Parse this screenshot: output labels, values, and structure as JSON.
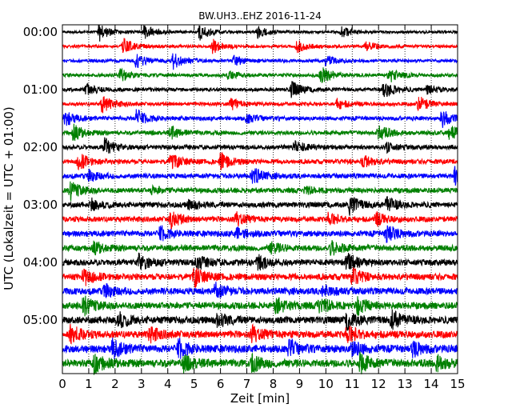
{
  "chart_data": {
    "type": "line",
    "title": "BW.UH3..EHZ 2016-11-24",
    "xlabel": "Zeit  [min]",
    "ylabel": "UTC (Lokalzeit = UTC + 01:00)",
    "xlim": [
      0,
      15
    ],
    "x_ticks": [
      "0",
      "1",
      "2",
      "3",
      "4",
      "5",
      "6",
      "7",
      "8",
      "9",
      "10",
      "11",
      "12",
      "13",
      "14",
      "15"
    ],
    "y_ticks": [
      "00:00",
      "01:00",
      "02:00",
      "03:00",
      "04:00",
      "05:00"
    ],
    "grid": "vertical dotted",
    "trace_colors": [
      "#000000",
      "#ff0000",
      "#0000ff",
      "#008000"
    ],
    "traces_per_hour": 4,
    "minutes_per_trace": 15,
    "traces": [
      {
        "start": "00:00",
        "color": "#000000",
        "events": [
          [
            1.4,
            1.0
          ],
          [
            3.1,
            0.8
          ],
          [
            5.2,
            0.9
          ],
          [
            7.4,
            0.7
          ],
          [
            10.6,
            0.6
          ]
        ]
      },
      {
        "start": "00:15",
        "color": "#ff0000",
        "events": [
          [
            2.3,
            1.0
          ],
          [
            5.7,
            0.8
          ],
          [
            8.9,
            0.7
          ],
          [
            11.5,
            0.5
          ]
        ]
      },
      {
        "start": "00:30",
        "color": "#0000ff",
        "events": [
          [
            2.8,
            0.8
          ],
          [
            4.2,
            0.9
          ],
          [
            6.5,
            0.6
          ],
          [
            10.0,
            0.6
          ]
        ]
      },
      {
        "start": "00:45",
        "color": "#008000",
        "events": [
          [
            2.2,
            0.7
          ],
          [
            6.3,
            0.5
          ],
          [
            9.8,
            1.0
          ],
          [
            12.4,
            0.8
          ]
        ]
      },
      {
        "start": "01:00",
        "color": "#000000",
        "events": [
          [
            0.9,
            0.6
          ],
          [
            8.7,
            0.9
          ],
          [
            12.2,
            1.0
          ],
          [
            13.8,
            0.6
          ]
        ]
      },
      {
        "start": "01:15",
        "color": "#ff0000",
        "events": [
          [
            1.5,
            1.0
          ],
          [
            6.4,
            0.6
          ],
          [
            10.4,
            0.6
          ],
          [
            13.5,
            0.9
          ]
        ]
      },
      {
        "start": "01:30",
        "color": "#0000ff",
        "events": [
          [
            0.1,
            0.8
          ],
          [
            2.8,
            1.0
          ],
          [
            7.0,
            0.5
          ],
          [
            14.4,
            1.0
          ]
        ]
      },
      {
        "start": "01:45",
        "color": "#008000",
        "events": [
          [
            0.4,
            0.9
          ],
          [
            4.1,
            0.7
          ],
          [
            12.0,
            0.9
          ],
          [
            14.7,
            0.8
          ]
        ]
      },
      {
        "start": "02:00",
        "color": "#000000",
        "events": [
          [
            1.6,
            1.0
          ],
          [
            8.8,
            0.7
          ],
          [
            12.3,
            0.5
          ]
        ]
      },
      {
        "start": "02:15",
        "color": "#ff0000",
        "events": [
          [
            0.6,
            1.0
          ],
          [
            4.1,
            0.9
          ],
          [
            6.0,
            0.9
          ],
          [
            11.4,
            0.7
          ]
        ]
      },
      {
        "start": "02:30",
        "color": "#0000ff",
        "events": [
          [
            1.0,
            0.6
          ],
          [
            7.2,
            1.0
          ],
          [
            14.9,
            1.0
          ]
        ]
      },
      {
        "start": "02:45",
        "color": "#008000",
        "events": [
          [
            0.3,
            1.0
          ],
          [
            3.4,
            0.4
          ],
          [
            9.2,
            0.4
          ]
        ]
      },
      {
        "start": "03:00",
        "color": "#000000",
        "events": [
          [
            1.1,
            0.6
          ],
          [
            4.8,
            0.5
          ],
          [
            10.9,
            1.0
          ],
          [
            12.3,
            0.8
          ]
        ]
      },
      {
        "start": "03:15",
        "color": "#ff0000",
        "events": [
          [
            4.1,
            1.0
          ],
          [
            6.6,
            0.7
          ],
          [
            10.1,
            0.7
          ],
          [
            11.9,
            0.7
          ]
        ]
      },
      {
        "start": "03:30",
        "color": "#0000ff",
        "events": [
          [
            3.7,
            0.8
          ],
          [
            6.6,
            0.6
          ],
          [
            12.3,
            1.0
          ]
        ]
      },
      {
        "start": "03:45",
        "color": "#008000",
        "events": [
          [
            1.2,
            0.6
          ],
          [
            7.9,
            0.6
          ],
          [
            10.2,
            0.8
          ]
        ]
      },
      {
        "start": "04:00",
        "color": "#000000",
        "events": [
          [
            2.9,
            1.0
          ],
          [
            5.1,
            0.8
          ],
          [
            7.4,
            0.8
          ],
          [
            10.8,
            1.0
          ]
        ]
      },
      {
        "start": "04:15",
        "color": "#ff0000",
        "events": [
          [
            0.8,
            1.0
          ],
          [
            5.0,
            1.0
          ],
          [
            11.0,
            0.9
          ]
        ]
      },
      {
        "start": "04:30",
        "color": "#0000ff",
        "events": [
          [
            1.6,
            0.7
          ],
          [
            5.8,
            0.8
          ],
          [
            9.9,
            0.7
          ]
        ]
      },
      {
        "start": "04:45",
        "color": "#008000",
        "events": [
          [
            0.8,
            1.0
          ],
          [
            8.1,
            0.9
          ],
          [
            9.7,
            1.0
          ],
          [
            11.2,
            0.9
          ]
        ]
      },
      {
        "start": "05:00",
        "color": "#000000",
        "events": [
          [
            2.1,
            0.9
          ],
          [
            5.9,
            0.8
          ],
          [
            10.8,
            0.9
          ],
          [
            12.5,
            1.0
          ]
        ]
      },
      {
        "start": "05:15",
        "color": "#ff0000",
        "events": [
          [
            0.3,
            1.0
          ],
          [
            3.3,
            0.8
          ],
          [
            7.2,
            0.8
          ],
          [
            10.8,
            1.0
          ]
        ]
      },
      {
        "start": "05:30",
        "color": "#0000ff",
        "events": [
          [
            1.9,
            1.0
          ],
          [
            4.4,
            1.0
          ],
          [
            8.6,
            0.9
          ],
          [
            11.0,
            0.9
          ],
          [
            13.3,
            0.8
          ]
        ]
      },
      {
        "start": "05:45",
        "color": "#008000",
        "events": [
          [
            1.2,
            1.0
          ],
          [
            4.6,
            0.8
          ],
          [
            7.2,
            0.9
          ],
          [
            11.3,
            1.0
          ],
          [
            14.2,
            0.8
          ]
        ]
      }
    ]
  }
}
